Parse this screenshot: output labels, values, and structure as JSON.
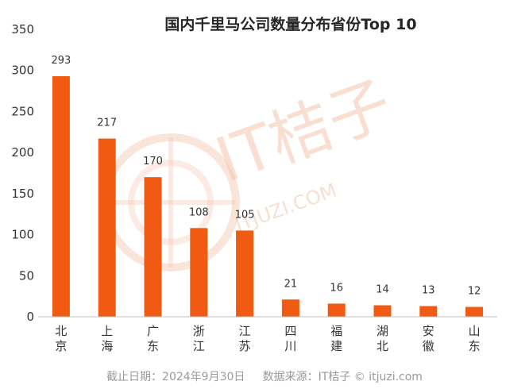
{
  "chart_data": {
    "type": "bar",
    "title": "国内千里马公司数量分布省份Top 10",
    "categories": [
      "北京",
      "上海",
      "广东",
      "浙江",
      "江苏",
      "四川",
      "福建",
      "湖北",
      "安徽",
      "山东"
    ],
    "values": [
      293,
      217,
      170,
      108,
      105,
      21,
      16,
      14,
      13,
      12
    ],
    "ylim": [
      0,
      350
    ],
    "yticks": [
      0,
      50,
      100,
      150,
      200,
      250,
      300,
      350
    ],
    "xlabel": "",
    "ylabel": "",
    "grid": false,
    "data_labels": true,
    "bar_color": "#f05a12"
  },
  "footer": {
    "text": "截止日期：2024年9月30日     数据来源：IT桔子 © itjuzi.com"
  },
  "watermark": {
    "brand": "IT桔子",
    "url": "ITJUZI.COM"
  },
  "colors": {
    "bar": "#f05a12",
    "title": "#262626",
    "axis": "#bfbfbf",
    "footer": "#999999"
  }
}
